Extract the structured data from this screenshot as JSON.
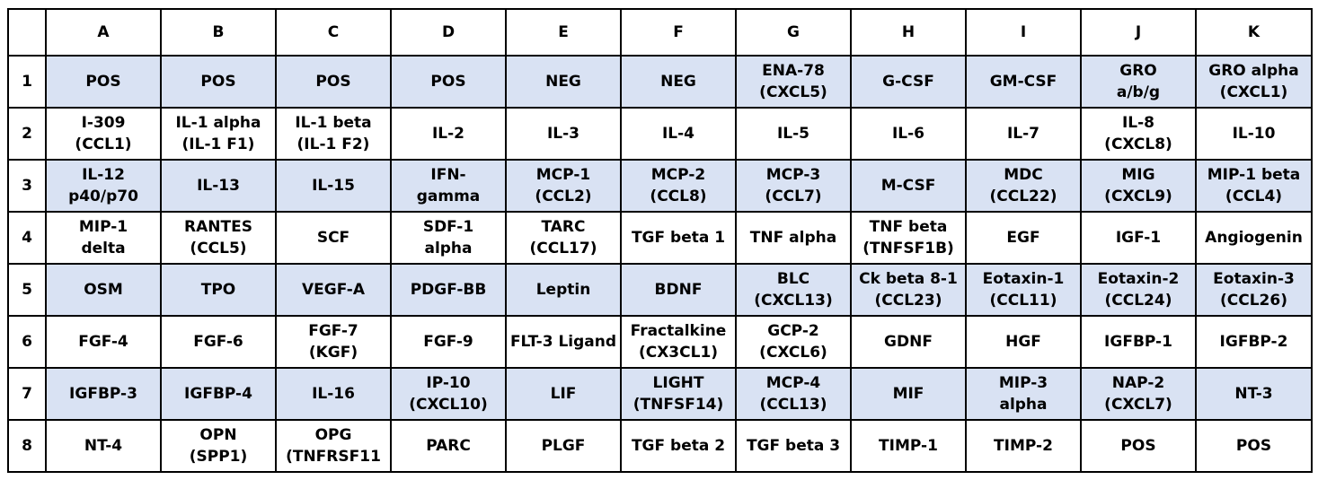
{
  "colors": {
    "shaded_row": "#d9e2f3",
    "border": "#000000"
  },
  "columns": [
    "A",
    "B",
    "C",
    "D",
    "E",
    "F",
    "G",
    "H",
    "I",
    "J",
    "K"
  ],
  "rows": [
    {
      "label": "1",
      "shaded": true,
      "cells": [
        [
          "POS"
        ],
        [
          "POS"
        ],
        [
          "POS"
        ],
        [
          "POS"
        ],
        [
          "NEG"
        ],
        [
          "NEG"
        ],
        [
          "ENA-78",
          "(CXCL5)"
        ],
        [
          "G-CSF"
        ],
        [
          "GM-CSF"
        ],
        [
          "GRO",
          "a/b/g"
        ],
        [
          "GRO alpha",
          "(CXCL1)"
        ]
      ]
    },
    {
      "label": "2",
      "shaded": false,
      "cells": [
        [
          "I-309",
          "(CCL1)"
        ],
        [
          "IL-1 alpha",
          "(IL-1 F1)"
        ],
        [
          "IL-1 beta",
          "(IL-1 F2)"
        ],
        [
          "IL-2"
        ],
        [
          "IL-3"
        ],
        [
          "IL-4"
        ],
        [
          "IL-5"
        ],
        [
          "IL-6"
        ],
        [
          "IL-7"
        ],
        [
          "IL-8",
          "(CXCL8)"
        ],
        [
          "IL-10"
        ]
      ]
    },
    {
      "label": "3",
      "shaded": true,
      "cells": [
        [
          "IL-12",
          "p40/p70"
        ],
        [
          "IL-13"
        ],
        [
          "IL-15"
        ],
        [
          "IFN-",
          "gamma"
        ],
        [
          "MCP-1",
          "(CCL2)"
        ],
        [
          "MCP-2",
          "(CCL8)"
        ],
        [
          "MCP-3",
          "(CCL7)"
        ],
        [
          "M-CSF"
        ],
        [
          "MDC",
          "(CCL22)"
        ],
        [
          "MIG",
          "(CXCL9)"
        ],
        [
          "MIP-1 beta",
          "(CCL4)"
        ]
      ]
    },
    {
      "label": "4",
      "shaded": false,
      "cells": [
        [
          "MIP-1",
          "delta"
        ],
        [
          "RANTES",
          "(CCL5)"
        ],
        [
          "SCF"
        ],
        [
          "SDF-1",
          "alpha"
        ],
        [
          "TARC",
          "(CCL17)"
        ],
        [
          "TGF beta 1"
        ],
        [
          "TNF alpha"
        ],
        [
          "TNF beta",
          "(TNFSF1B)"
        ],
        [
          "EGF"
        ],
        [
          "IGF-1"
        ],
        [
          "Angiogenin"
        ]
      ]
    },
    {
      "label": "5",
      "shaded": true,
      "cells": [
        [
          "OSM"
        ],
        [
          "TPO"
        ],
        [
          "VEGF-A"
        ],
        [
          "PDGF-BB"
        ],
        [
          "Leptin"
        ],
        [
          "BDNF"
        ],
        [
          "BLC",
          "(CXCL13)"
        ],
        [
          "Ck beta 8-1",
          "(CCL23)"
        ],
        [
          "Eotaxin-1",
          "(CCL11)"
        ],
        [
          "Eotaxin-2",
          "(CCL24)"
        ],
        [
          "Eotaxin-3",
          "(CCL26)"
        ]
      ]
    },
    {
      "label": "6",
      "shaded": false,
      "cells": [
        [
          "FGF-4"
        ],
        [
          "FGF-6"
        ],
        [
          "FGF-7",
          "(KGF)"
        ],
        [
          "FGF-9"
        ],
        [
          "FLT-3 Ligand"
        ],
        [
          "Fractalkine",
          "(CX3CL1)"
        ],
        [
          "GCP-2",
          "(CXCL6)"
        ],
        [
          "GDNF"
        ],
        [
          "HGF"
        ],
        [
          "IGFBP-1"
        ],
        [
          "IGFBP-2"
        ]
      ]
    },
    {
      "label": "7",
      "shaded": true,
      "cells": [
        [
          "IGFBP-3"
        ],
        [
          "IGFBP-4"
        ],
        [
          "IL-16"
        ],
        [
          "IP-10",
          "(CXCL10)"
        ],
        [
          "LIF"
        ],
        [
          "LIGHT",
          "(TNFSF14)"
        ],
        [
          "MCP-4",
          "(CCL13)"
        ],
        [
          "MIF"
        ],
        [
          "MIP-3",
          "alpha"
        ],
        [
          "NAP-2",
          "(CXCL7)"
        ],
        [
          "NT-3"
        ]
      ]
    },
    {
      "label": "8",
      "shaded": false,
      "cells": [
        [
          "NT-4"
        ],
        [
          "OPN",
          "(SPP1)"
        ],
        [
          "OPG",
          "(TNFRSF11"
        ],
        [
          "PARC"
        ],
        [
          "PLGF"
        ],
        [
          "TGF beta 2"
        ],
        [
          "TGF beta 3"
        ],
        [
          "TIMP-1"
        ],
        [
          "TIMP-2"
        ],
        [
          "POS"
        ],
        [
          "POS"
        ]
      ]
    }
  ]
}
